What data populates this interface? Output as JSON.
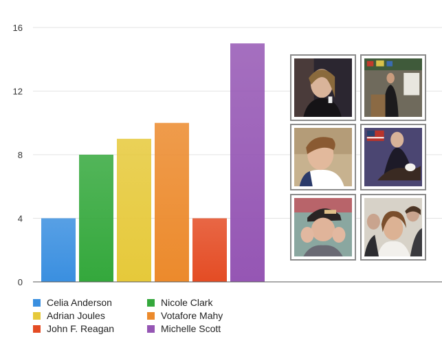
{
  "chart_data": {
    "type": "bar",
    "categories": [
      "Celia Anderson",
      "Nicole Clark",
      "Adrian Joules",
      "Votafore Mahy",
      "John F. Reagan",
      "Michelle Scott"
    ],
    "values": [
      4,
      8,
      9,
      10,
      4,
      15
    ],
    "colors": [
      "#3a8fe0",
      "#34a83c",
      "#e6c93a",
      "#ec8a2c",
      "#e44c24",
      "#9556b4"
    ],
    "ylim": [
      0,
      16
    ],
    "yticks": [
      0,
      4,
      8,
      12,
      16
    ],
    "title": "",
    "xlabel": "",
    "ylabel": "",
    "grid": true,
    "legend": {
      "placement": "bottom-left",
      "entries": [
        "Celia Anderson",
        "Nicole Clark",
        "Adrian Joules",
        "Votafore Mahy",
        "John F. Reagan",
        "Michelle Scott"
      ]
    }
  },
  "photos": [
    {
      "icon": "portrait-photo-icon"
    },
    {
      "icon": "classroom-photo-icon"
    },
    {
      "icon": "portrait-photo-icon"
    },
    {
      "icon": "flag-eagle-photo-icon"
    },
    {
      "icon": "cap-portrait-photo-icon"
    },
    {
      "icon": "group-selfie-photo-icon"
    }
  ]
}
